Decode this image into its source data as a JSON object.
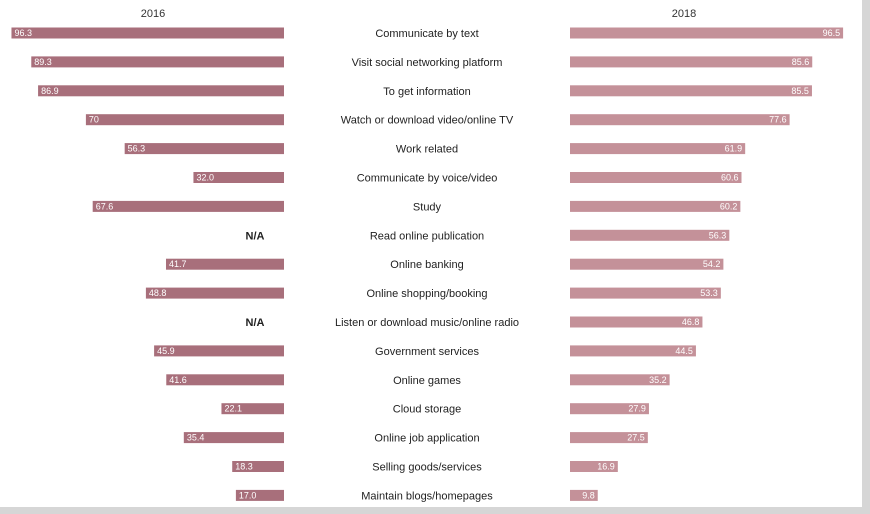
{
  "colors": {
    "bar_2016": "#a86f7b",
    "bar_2018": "#c49199",
    "background": "#ffffff"
  },
  "chart_data": {
    "type": "bar",
    "orientation": "horizontal",
    "layout": "butterfly",
    "categories": [
      "Communicate by text",
      "Visit social networking platform",
      "To get information",
      "Watch or download video/online TV",
      "Work related",
      "Communicate by voice/video",
      "Study",
      "Read online publication",
      "Online banking",
      "Online shopping/booking",
      "Listen or download music/online radio",
      "Government services",
      "Online games",
      "Cloud storage",
      "Online job application",
      "Selling goods/services",
      "Maintain blogs/homepages"
    ],
    "series": [
      {
        "name": "2016",
        "values": [
          96.3,
          89.3,
          86.9,
          70,
          56.3,
          32.0,
          67.6,
          null,
          41.7,
          48.8,
          null,
          45.9,
          41.6,
          22.1,
          35.4,
          18.3,
          17.0
        ],
        "labels": [
          "96.3",
          "89.3",
          "86.9",
          "70",
          "56.3",
          "32.0",
          "67.6",
          "N/A",
          "41.7",
          "48.8",
          "N/A",
          "45.9",
          "41.6",
          "22.1",
          "35.4",
          "18.3",
          "17.0"
        ]
      },
      {
        "name": "2018",
        "values": [
          96.5,
          85.6,
          85.5,
          77.6,
          61.9,
          60.6,
          60.2,
          56.3,
          54.2,
          53.3,
          46.8,
          44.5,
          35.2,
          27.9,
          27.5,
          16.9,
          9.8
        ],
        "labels": [
          "96.5",
          "85.6",
          "85.5",
          "77.6",
          "61.9",
          "60.6",
          "60.2",
          "56.3",
          "54.2",
          "53.3",
          "46.8",
          "44.5",
          "35.2",
          "27.9",
          "27.5",
          "16.9",
          "9.8"
        ]
      }
    ],
    "xlim": [
      0,
      100
    ],
    "grid": false,
    "title": "",
    "xlabel": "",
    "ylabel": ""
  }
}
